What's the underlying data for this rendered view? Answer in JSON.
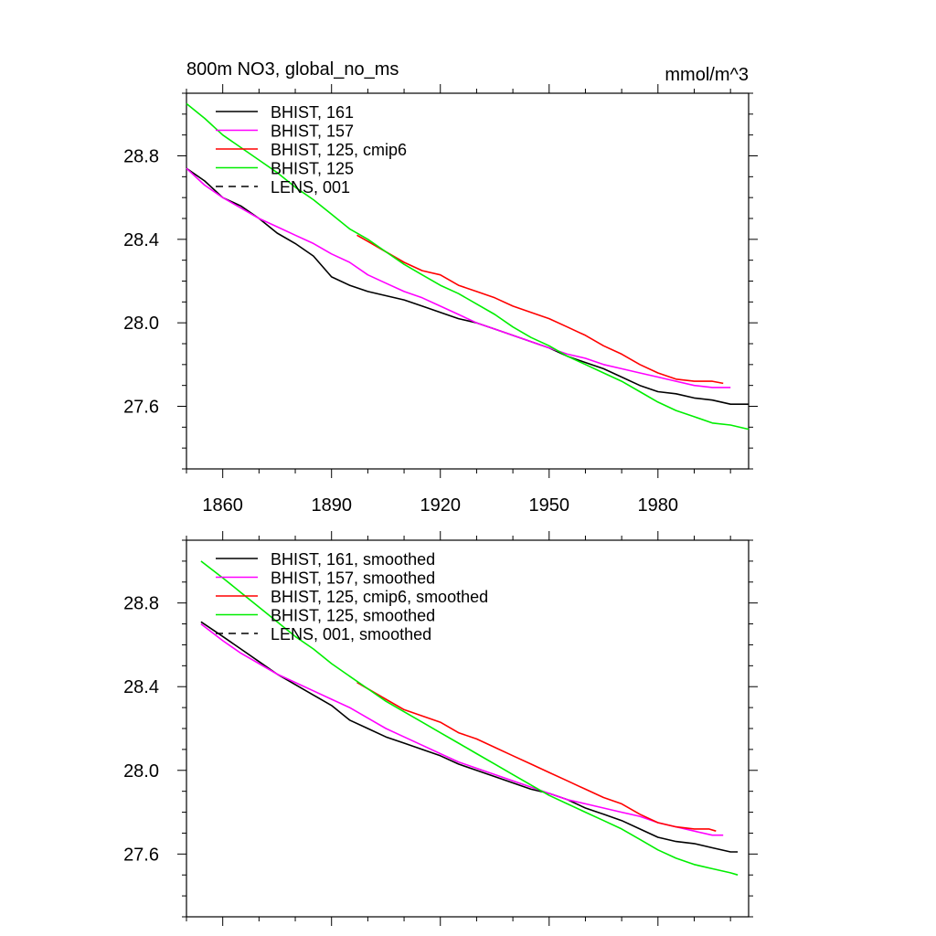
{
  "chart_data": [
    {
      "type": "line",
      "title": "800m NO3, global_no_ms",
      "units": "mmol/m^3",
      "xlim": [
        1850,
        2005
      ],
      "ylim": [
        27.3,
        29.1
      ],
      "xticks": [
        1860,
        1890,
        1920,
        1950,
        1980
      ],
      "xtick_labels": [
        "1860",
        "1890",
        "1920",
        "1950",
        "1980"
      ],
      "yticks": [
        27.6,
        28.0,
        28.4,
        28.8
      ],
      "ytick_labels": [
        "27.6",
        "28.0",
        "28.4",
        "28.8"
      ],
      "legend_position": "top-left",
      "series": [
        {
          "name": "BHIST, 161",
          "color": "#000000",
          "dash": "solid",
          "x": [
            1850,
            1855,
            1860,
            1865,
            1870,
            1875,
            1880,
            1885,
            1890,
            1895,
            1900,
            1905,
            1910,
            1915,
            1920,
            1925,
            1930,
            1935,
            1940,
            1945,
            1950,
            1955,
            1960,
            1965,
            1970,
            1975,
            1980,
            1985,
            1990,
            1995,
            2000,
            2005
          ],
          "y": [
            28.74,
            28.68,
            28.6,
            28.56,
            28.5,
            28.43,
            28.38,
            28.32,
            28.22,
            28.18,
            28.15,
            28.13,
            28.11,
            28.08,
            28.05,
            28.02,
            28.0,
            27.97,
            27.94,
            27.91,
            27.88,
            27.84,
            27.81,
            27.78,
            27.74,
            27.7,
            27.67,
            27.66,
            27.64,
            27.63,
            27.61,
            27.61
          ]
        },
        {
          "name": "BHIST, 157",
          "color": "#ff00ff",
          "dash": "solid",
          "x": [
            1850,
            1855,
            1860,
            1865,
            1870,
            1875,
            1880,
            1885,
            1890,
            1895,
            1900,
            1905,
            1910,
            1915,
            1920,
            1925,
            1930,
            1935,
            1940,
            1945,
            1950,
            1955,
            1960,
            1965,
            1970,
            1975,
            1980,
            1985,
            1990,
            1995,
            2000
          ],
          "y": [
            28.74,
            28.66,
            28.6,
            28.55,
            28.5,
            28.46,
            28.42,
            28.38,
            28.33,
            28.29,
            28.23,
            28.19,
            28.15,
            28.12,
            28.08,
            28.04,
            28.0,
            27.97,
            27.94,
            27.91,
            27.88,
            27.85,
            27.83,
            27.8,
            27.78,
            27.76,
            27.74,
            27.72,
            27.7,
            27.69,
            27.69
          ]
        },
        {
          "name": "BHIST, 125, cmip6",
          "color": "#ff0000",
          "dash": "solid",
          "x": [
            1897,
            1900,
            1905,
            1910,
            1915,
            1920,
            1925,
            1930,
            1935,
            1940,
            1945,
            1950,
            1955,
            1960,
            1965,
            1970,
            1975,
            1980,
            1985,
            1990,
            1995,
            1998
          ],
          "y": [
            28.42,
            28.39,
            28.34,
            28.29,
            28.25,
            28.23,
            28.18,
            28.15,
            28.12,
            28.08,
            28.05,
            28.02,
            27.98,
            27.94,
            27.89,
            27.85,
            27.8,
            27.76,
            27.73,
            27.72,
            27.72,
            27.71
          ]
        },
        {
          "name": "BHIST, 125",
          "color": "#00ee00",
          "dash": "solid",
          "x": [
            1850,
            1855,
            1860,
            1865,
            1870,
            1875,
            1880,
            1885,
            1890,
            1895,
            1900,
            1905,
            1910,
            1915,
            1920,
            1925,
            1930,
            1935,
            1940,
            1945,
            1950,
            1955,
            1960,
            1965,
            1970,
            1975,
            1980,
            1985,
            1990,
            1995,
            2000,
            2005
          ],
          "y": [
            29.05,
            28.98,
            28.9,
            28.84,
            28.78,
            28.72,
            28.65,
            28.59,
            28.52,
            28.45,
            28.4,
            28.34,
            28.28,
            28.23,
            28.18,
            28.14,
            28.09,
            28.04,
            27.98,
            27.93,
            27.89,
            27.84,
            27.8,
            27.76,
            27.72,
            27.67,
            27.62,
            27.58,
            27.55,
            27.52,
            27.51,
            27.49
          ]
        },
        {
          "name": "LENS, 001",
          "color": "#000000",
          "dash": "dashed",
          "x": [],
          "y": []
        }
      ]
    },
    {
      "type": "line",
      "xlim": [
        1850,
        2005
      ],
      "ylim": [
        27.3,
        29.1
      ],
      "xticks": [
        1860,
        1890,
        1920,
        1950,
        1980
      ],
      "yticks": [
        27.6,
        28.0,
        28.4,
        28.8
      ],
      "ytick_labels": [
        "27.6",
        "28.0",
        "28.4",
        "28.8"
      ],
      "legend_position": "top-left",
      "series": [
        {
          "name": "BHIST, 161, smoothed",
          "color": "#000000",
          "dash": "solid",
          "x": [
            1854,
            1860,
            1865,
            1870,
            1875,
            1880,
            1885,
            1890,
            1895,
            1900,
            1905,
            1910,
            1915,
            1920,
            1925,
            1930,
            1935,
            1940,
            1945,
            1950,
            1955,
            1960,
            1965,
            1970,
            1975,
            1980,
            1985,
            1990,
            1995,
            2000,
            2002
          ],
          "y": [
            28.71,
            28.64,
            28.58,
            28.52,
            28.46,
            28.41,
            28.36,
            28.31,
            28.24,
            28.2,
            28.16,
            28.13,
            28.1,
            28.07,
            28.03,
            28.0,
            27.97,
            27.94,
            27.91,
            27.89,
            27.86,
            27.82,
            27.79,
            27.76,
            27.72,
            27.68,
            27.66,
            27.65,
            27.63,
            27.61,
            27.61
          ]
        },
        {
          "name": "BHIST, 157, smoothed",
          "color": "#ff00ff",
          "dash": "solid",
          "x": [
            1854,
            1860,
            1865,
            1870,
            1875,
            1880,
            1885,
            1890,
            1895,
            1900,
            1905,
            1910,
            1915,
            1920,
            1925,
            1930,
            1935,
            1940,
            1945,
            1950,
            1955,
            1960,
            1965,
            1970,
            1975,
            1980,
            1985,
            1990,
            1995,
            1998
          ],
          "y": [
            28.7,
            28.62,
            28.56,
            28.51,
            28.46,
            28.42,
            28.38,
            28.34,
            28.3,
            28.25,
            28.2,
            28.16,
            28.12,
            28.08,
            28.04,
            28.01,
            27.98,
            27.95,
            27.92,
            27.89,
            27.86,
            27.84,
            27.82,
            27.8,
            27.78,
            27.75,
            27.73,
            27.71,
            27.69,
            27.69
          ]
        },
        {
          "name": "BHIST, 125, cmip6, smoothed",
          "color": "#ff0000",
          "dash": "solid",
          "x": [
            1897,
            1900,
            1905,
            1910,
            1915,
            1920,
            1925,
            1930,
            1935,
            1940,
            1945,
            1950,
            1955,
            1960,
            1965,
            1970,
            1975,
            1980,
            1985,
            1990,
            1994,
            1996
          ],
          "y": [
            28.42,
            28.39,
            28.34,
            28.29,
            28.26,
            28.23,
            28.18,
            28.15,
            28.11,
            28.07,
            28.03,
            27.99,
            27.95,
            27.91,
            27.87,
            27.84,
            27.79,
            27.75,
            27.73,
            27.72,
            27.72,
            27.71
          ]
        },
        {
          "name": "BHIST, 125, smoothed",
          "color": "#00ee00",
          "dash": "solid",
          "x": [
            1854,
            1860,
            1865,
            1870,
            1875,
            1880,
            1885,
            1890,
            1895,
            1900,
            1905,
            1910,
            1915,
            1920,
            1925,
            1930,
            1935,
            1940,
            1945,
            1950,
            1955,
            1960,
            1965,
            1970,
            1975,
            1980,
            1985,
            1990,
            1995,
            2000,
            2002
          ],
          "y": [
            29.0,
            28.92,
            28.85,
            28.78,
            28.71,
            28.64,
            28.58,
            28.51,
            28.45,
            28.39,
            28.33,
            28.28,
            28.23,
            28.18,
            28.13,
            28.08,
            28.03,
            27.98,
            27.93,
            27.88,
            27.84,
            27.8,
            27.76,
            27.72,
            27.67,
            27.62,
            27.58,
            27.55,
            27.53,
            27.51,
            27.5
          ]
        },
        {
          "name": "LENS, 001, smoothed",
          "color": "#000000",
          "dash": "dashed",
          "x": [],
          "y": []
        }
      ]
    }
  ]
}
